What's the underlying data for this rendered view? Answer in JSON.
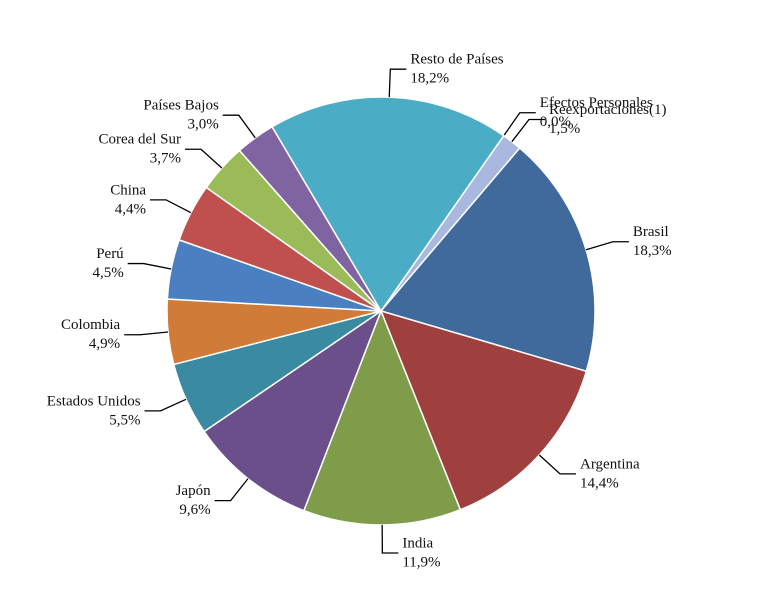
{
  "chart_data": {
    "type": "pie",
    "categories": [
      "Efectos Personales",
      "Reexportaciones(1)",
      "Brasil",
      "Argentina",
      "India",
      "Japón",
      "Estados Unidos",
      "Colombia",
      "Perú",
      "China",
      "Corea del Sur",
      "Países Bajos",
      "Resto de Países"
    ],
    "values": [
      0.0,
      1.5,
      18.3,
      14.4,
      11.9,
      9.6,
      5.5,
      4.9,
      4.5,
      4.4,
      3.7,
      3.0,
      18.2
    ],
    "value_labels": [
      "0,0%",
      "1,5%",
      "18,3%",
      "14,4%",
      "11,9%",
      "9,6%",
      "5,5%",
      "4,9%",
      "4,5%",
      "4,4%",
      "3,7%",
      "3,0%",
      "18,2%"
    ],
    "colors": [
      "#c6cfe8",
      "#a9b8de",
      "#3f6a9b",
      "#a0403e",
      "#7f9c4a",
      "#6a4f8a",
      "#3a8aa1",
      "#d07b37",
      "#4a7fc2",
      "#c0504d",
      "#9bbb59",
      "#8064a2",
      "#4bacc6"
    ]
  }
}
